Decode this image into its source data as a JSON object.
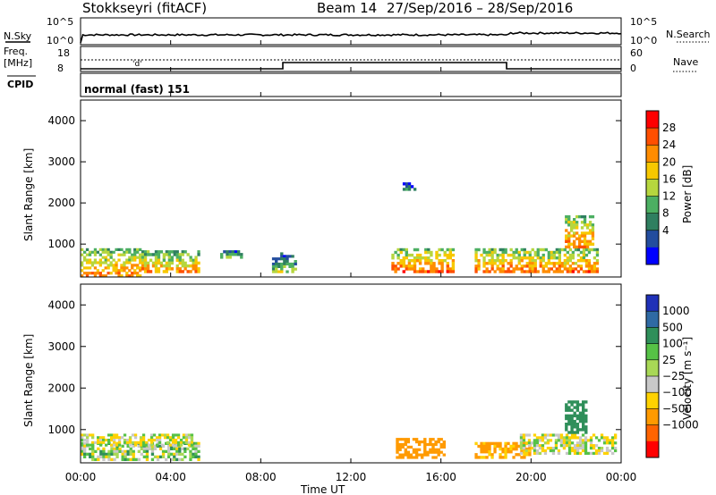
{
  "header": {
    "radar": "Stokkseyri (fitACF)",
    "beam": "Beam 14",
    "date_range": "27/Sep/2016 – 28/Sep/2016"
  },
  "nsky": {
    "label": "N.Sky",
    "y_ticks": [
      "10^5",
      "10^0"
    ],
    "right_label": "N.Search",
    "right_ticks": [
      "10^5",
      "10^0"
    ]
  },
  "freq": {
    "label_line1": "Freq.",
    "label_line2": "[MHz]",
    "y_ticks": [
      "18",
      "8"
    ],
    "right_label": "Nave",
    "right_ticks": [
      "60",
      "0"
    ],
    "annotation": "'d'"
  },
  "cpid": {
    "label": "CPID",
    "mode": "normal (fast) 151"
  },
  "power_colorbar": {
    "label": "Power [dB]",
    "ticks": [
      "28",
      "24",
      "20",
      "16",
      "12",
      "8",
      "4"
    ],
    "colors": [
      "#ff0000",
      "#ff4f00",
      "#ff8c00",
      "#f7c800",
      "#b6d63e",
      "#4caf62",
      "#2f7f60",
      "#234d9e",
      "#0000ff"
    ]
  },
  "velocity_colorbar": {
    "label": "Velocity [m s⁻¹]",
    "ticks": [
      "1000",
      "500",
      "100",
      "25",
      "−25",
      "−100",
      "−500",
      "−1000"
    ],
    "colors": [
      "#1f31b8",
      "#2f6aa4",
      "#2f8f5a",
      "#56c246",
      "#a8d856",
      "#c8c8c8",
      "#ffd200",
      "#ff9a00",
      "#ff6400",
      "#ff0000"
    ]
  },
  "axes": {
    "ylabel": "Slant Range [km]",
    "y_ticks": [
      "1000",
      "2000",
      "3000",
      "4000"
    ],
    "x_ticks": [
      "00:00",
      "04:00",
      "08:00",
      "12:00",
      "16:00",
      "20:00",
      "00:00"
    ],
    "xlabel": "Time UT"
  },
  "chart_data": [
    {
      "type": "line",
      "title": "N.Sky / N.Search",
      "x": [
        0,
        24
      ],
      "xlim": [
        0,
        24
      ],
      "ylim_log10": [
        0,
        5
      ]
    },
    {
      "type": "line",
      "title": "Freq. / Nave",
      "segments": [
        {
          "x": [
            0,
            9
          ],
          "freq": 8.5
        },
        {
          "x": [
            9,
            18.9
          ],
          "freq": 10
        },
        {
          "x": [
            18.9,
            24
          ],
          "freq": 8.5
        }
      ],
      "ylim": [
        8,
        18
      ],
      "nave_range": [
        0,
        60
      ]
    },
    {
      "type": "heatmap",
      "title": "Power [dB]",
      "xlim": [
        0,
        24
      ],
      "ylim": [
        200,
        4500
      ],
      "x_unit": "hours UT",
      "y_unit": "km",
      "zlim": [
        0,
        30
      ],
      "patches": [
        {
          "x": [
            0.0,
            2.7
          ],
          "y": [
            200,
            900
          ],
          "power": 18
        },
        {
          "x": [
            2.7,
            5.3
          ],
          "y": [
            300,
            850
          ],
          "power": 17
        },
        {
          "x": [
            6.2,
            7.2
          ],
          "y": [
            650,
            850
          ],
          "power": 12
        },
        {
          "x": [
            8.5,
            9.6
          ],
          "y": [
            300,
            800
          ],
          "power": 9
        },
        {
          "x": [
            13.8,
            16.6
          ],
          "y": [
            300,
            900
          ],
          "power": 20
        },
        {
          "x": [
            14.3,
            14.9
          ],
          "y": [
            2300,
            2500
          ],
          "power": 7
        },
        {
          "x": [
            17.5,
            23.0
          ],
          "y": [
            300,
            900
          ],
          "power": 19
        },
        {
          "x": [
            21.5,
            22.8
          ],
          "y": [
            900,
            1700
          ],
          "power": 18
        }
      ]
    },
    {
      "type": "heatmap",
      "title": "Velocity [m s⁻¹]",
      "xlim": [
        0,
        24
      ],
      "ylim": [
        200,
        4500
      ],
      "x_unit": "hours UT",
      "y_unit": "km",
      "patches": [
        {
          "x": [
            0.0,
            5.3
          ],
          "y": [
            250,
            700
          ],
          "velocity": 40
        },
        {
          "x": [
            0.0,
            5.0
          ],
          "y": [
            600,
            900
          ],
          "velocity": 0
        },
        {
          "x": [
            14.0,
            16.2
          ],
          "y": [
            300,
            800
          ],
          "velocity": -200
        },
        {
          "x": [
            17.5,
            20.0
          ],
          "y": [
            300,
            700
          ],
          "velocity": -150
        },
        {
          "x": [
            19.5,
            23.8
          ],
          "y": [
            400,
            900
          ],
          "velocity": 0
        },
        {
          "x": [
            21.5,
            22.5
          ],
          "y": [
            900,
            1700
          ],
          "velocity": 300
        }
      ]
    }
  ]
}
